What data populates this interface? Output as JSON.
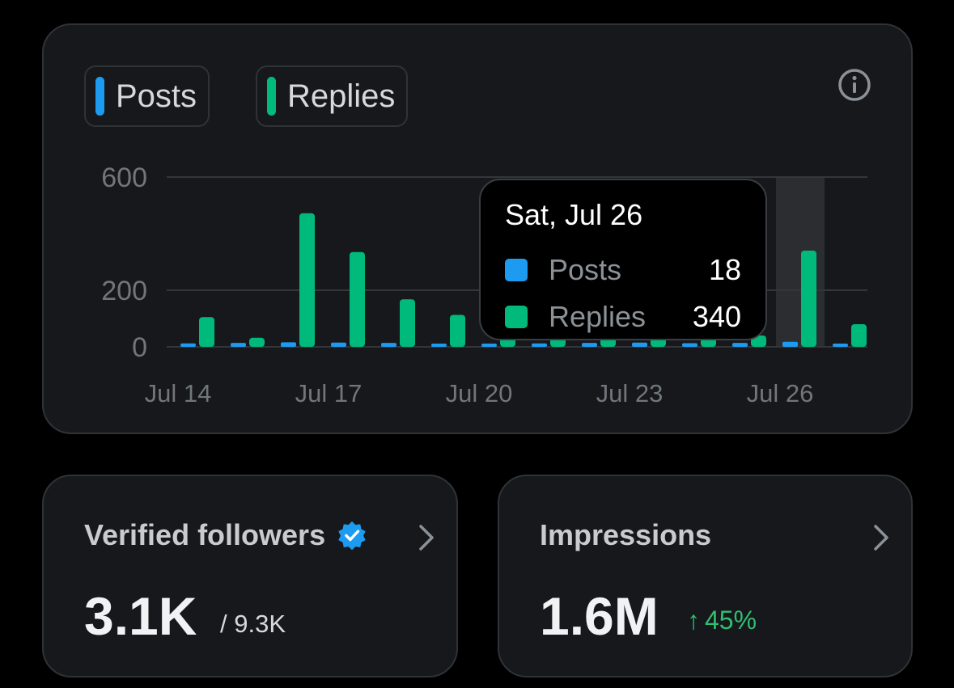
{
  "chart": {
    "legend": [
      {
        "label": "Posts",
        "color": "#1d9bf0"
      },
      {
        "label": "Replies",
        "color": "#00ba7c"
      }
    ],
    "info_icon": "info-icon"
  },
  "chart_data": {
    "type": "bar",
    "categories": [
      "Jul 14",
      "Jul 15",
      "Jul 16",
      "Jul 17",
      "Jul 18",
      "Jul 19",
      "Jul 20",
      "Jul 21",
      "Jul 22",
      "Jul 23",
      "Jul 24",
      "Jul 25",
      "Jul 26",
      "Jul 27"
    ],
    "x_tick_labels": [
      "Jul 14",
      "Jul 17",
      "Jul 20",
      "Jul 23",
      "Jul 26"
    ],
    "y_tick_labels": [
      "600",
      "200",
      "0"
    ],
    "y_ticks": [
      600,
      200,
      0
    ],
    "ylim": [
      0,
      600
    ],
    "series": [
      {
        "name": "Posts",
        "color": "#1d9bf0",
        "values": [
          12,
          14,
          16,
          15,
          14,
          8,
          10,
          12,
          14,
          15,
          13,
          14,
          18,
          4
        ]
      },
      {
        "name": "Replies",
        "color": "#00ba7c",
        "values": [
          105,
          32,
          472,
          335,
          168,
          113,
          40,
          40,
          40,
          40,
          40,
          40,
          340,
          80
        ]
      }
    ],
    "highlight_category": "Jul 26",
    "tooltip": {
      "date": "Sat, Jul 26",
      "rows": [
        {
          "name": "Posts",
          "value": "18",
          "color": "#1d9bf0"
        },
        {
          "name": "Replies",
          "value": "340",
          "color": "#00ba7c"
        }
      ]
    }
  },
  "followers": {
    "title": "Verified followers",
    "value": "3.1K",
    "total": "/ 9.3K",
    "badge_icon": "verified-badge-icon"
  },
  "impressions": {
    "title": "Impressions",
    "value": "1.6M",
    "delta": "45%",
    "delta_arrow": "↑"
  }
}
